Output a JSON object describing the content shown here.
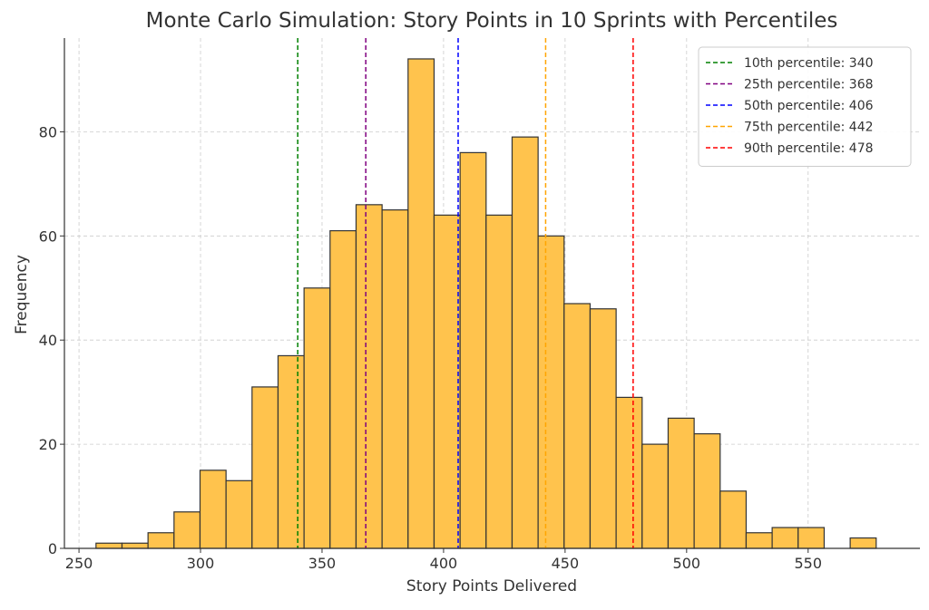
{
  "chart_data": {
    "type": "bar",
    "title": "Monte Carlo Simulation: Story Points in 10 Sprints with Percentiles",
    "xlabel": "Story Points Delivered",
    "ylabel": "Frequency",
    "xlim": [
      244,
      596
    ],
    "ylim": [
      0,
      98
    ],
    "x_ticks": [
      250,
      300,
      350,
      400,
      450,
      500,
      550
    ],
    "y_ticks": [
      0,
      20,
      40,
      60,
      80
    ],
    "grid": true,
    "legend_position": "top-right",
    "bar_color": "#ffc34d",
    "bar_edge_color": "#333333",
    "bins": [
      {
        "start": 257,
        "end": 267.7,
        "count": 1
      },
      {
        "start": 267.7,
        "end": 278.4,
        "count": 1
      },
      {
        "start": 278.4,
        "end": 289.1,
        "count": 3
      },
      {
        "start": 289.1,
        "end": 299.8,
        "count": 7
      },
      {
        "start": 299.8,
        "end": 310.5,
        "count": 15
      },
      {
        "start": 310.5,
        "end": 321.2,
        "count": 13
      },
      {
        "start": 321.2,
        "end": 331.9,
        "count": 31
      },
      {
        "start": 331.9,
        "end": 342.6,
        "count": 37
      },
      {
        "start": 342.6,
        "end": 353.3,
        "count": 50
      },
      {
        "start": 353.3,
        "end": 364.0,
        "count": 61
      },
      {
        "start": 364.0,
        "end": 374.7,
        "count": 66
      },
      {
        "start": 374.7,
        "end": 385.4,
        "count": 65
      },
      {
        "start": 385.4,
        "end": 396.1,
        "count": 94
      },
      {
        "start": 396.1,
        "end": 406.8,
        "count": 64
      },
      {
        "start": 406.8,
        "end": 417.5,
        "count": 76
      },
      {
        "start": 417.5,
        "end": 428.2,
        "count": 64
      },
      {
        "start": 428.2,
        "end": 438.9,
        "count": 79
      },
      {
        "start": 438.9,
        "end": 449.6,
        "count": 60
      },
      {
        "start": 449.6,
        "end": 460.3,
        "count": 47
      },
      {
        "start": 460.3,
        "end": 471.0,
        "count": 46
      },
      {
        "start": 471.0,
        "end": 481.7,
        "count": 29
      },
      {
        "start": 481.7,
        "end": 492.4,
        "count": 20
      },
      {
        "start": 492.4,
        "end": 503.1,
        "count": 25
      },
      {
        "start": 503.1,
        "end": 513.8,
        "count": 22
      },
      {
        "start": 513.8,
        "end": 524.5,
        "count": 11
      },
      {
        "start": 524.5,
        "end": 535.2,
        "count": 3
      },
      {
        "start": 535.2,
        "end": 545.9,
        "count": 4
      },
      {
        "start": 545.9,
        "end": 556.6,
        "count": 4
      },
      {
        "start": 556.6,
        "end": 567.3,
        "count": 0
      },
      {
        "start": 567.3,
        "end": 578.0,
        "count": 2
      }
    ],
    "percentiles": [
      {
        "label": "10th percentile: 340",
        "value": 340,
        "color": "#008000"
      },
      {
        "label": "25th percentile: 368",
        "value": 368,
        "color": "#800080"
      },
      {
        "label": "50th percentile: 406",
        "value": 406,
        "color": "#0000ff"
      },
      {
        "label": "75th percentile: 442",
        "value": 442,
        "color": "#ffa500"
      },
      {
        "label": "90th percentile: 478",
        "value": 478,
        "color": "#ff0000"
      }
    ]
  }
}
